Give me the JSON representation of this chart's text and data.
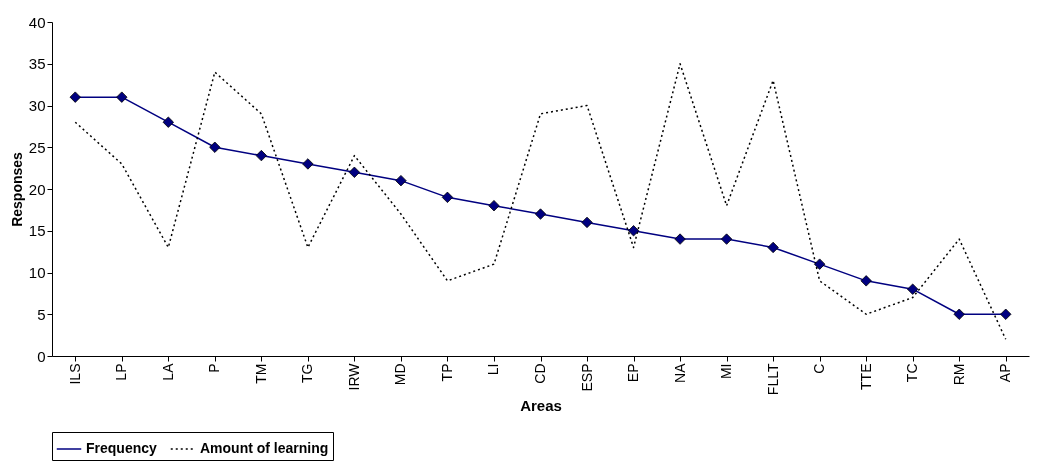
{
  "chart_data": {
    "type": "line",
    "xlabel": "Areas",
    "ylabel": "Responses",
    "categories": [
      "ILS",
      "LP",
      "LA",
      "P",
      "TM",
      "TG",
      "IRW",
      "MD",
      "TP",
      "LI",
      "CD",
      "ESP",
      "EP",
      "NA",
      "MI",
      "FLLT",
      "C",
      "TTE",
      "TC",
      "RM",
      "AP"
    ],
    "series": [
      {
        "name": "Frequency",
        "color": "#000080",
        "marker": "diamond",
        "line_style": "solid",
        "values": [
          31,
          31,
          28,
          25,
          24,
          23,
          22,
          21,
          19,
          18,
          17,
          16,
          15,
          14,
          14,
          13,
          11,
          9,
          8,
          5,
          5
        ]
      },
      {
        "name": "Amount of learning",
        "color": "#000000",
        "marker": "none",
        "line_style": "dotted",
        "values": [
          28,
          23,
          13,
          34,
          29,
          13,
          24,
          17,
          9,
          11,
          29,
          30,
          13,
          35,
          18,
          33,
          9,
          5,
          7,
          14,
          2
        ]
      }
    ],
    "ylim": [
      0,
      40
    ],
    "yticks": [
      0,
      5,
      10,
      15,
      20,
      25,
      30,
      35,
      40
    ],
    "grid": false,
    "legend": "bottom"
  }
}
